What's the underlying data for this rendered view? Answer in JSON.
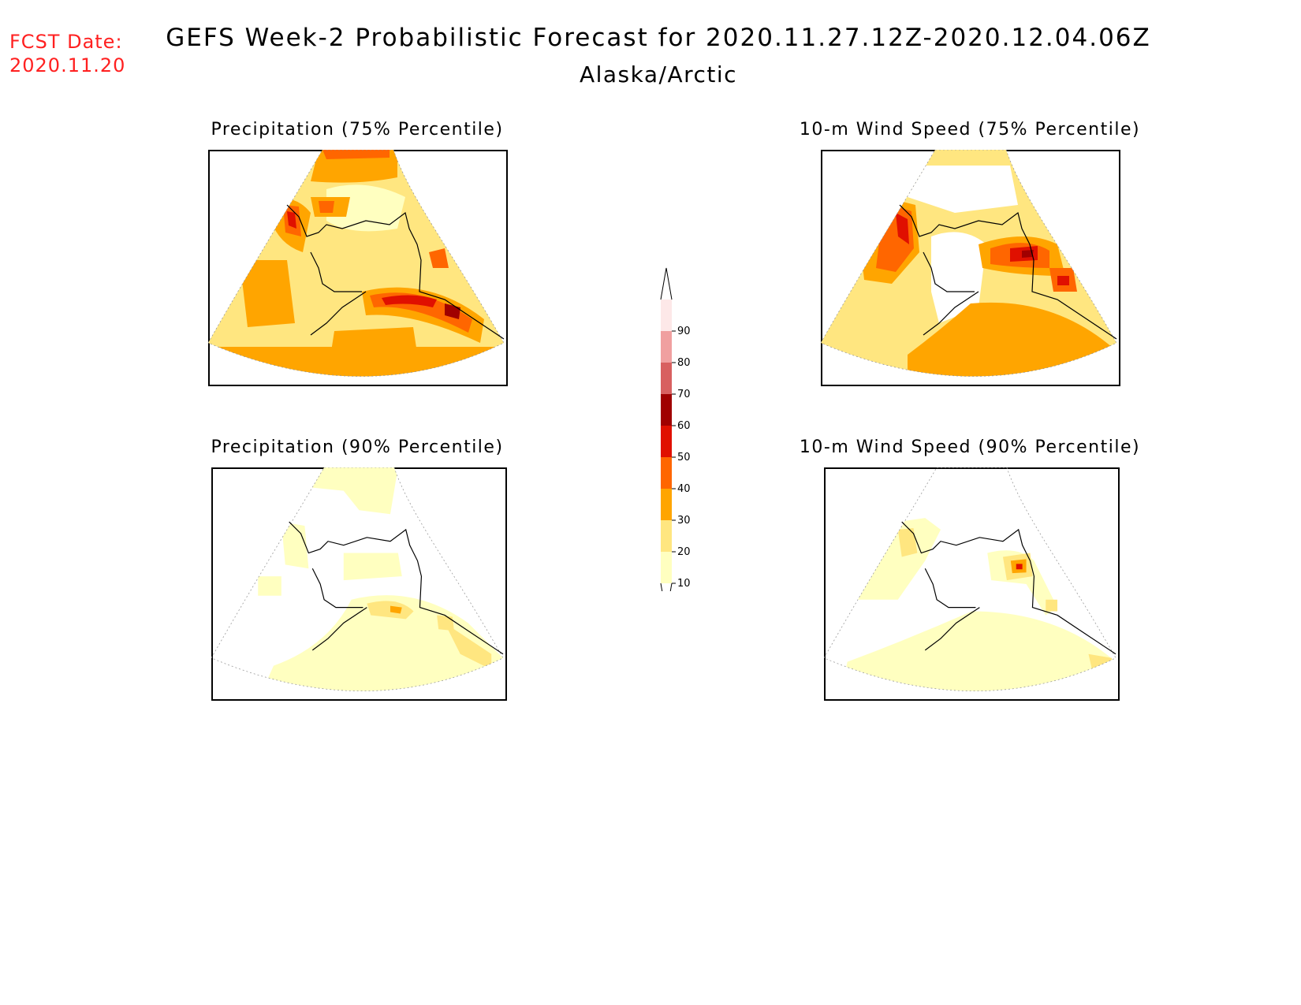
{
  "fcst_date": {
    "label": "FCST Date:",
    "value": "2020.11.20"
  },
  "title": "GEFS Week-2 Probabilistic Forecast for 2020.11.27.12Z-2020.12.04.06Z",
  "region": "Alaska/Arctic",
  "panels": [
    {
      "title": "Precipitation (75% Percentile)"
    },
    {
      "title": "10-m Wind Speed (75% Percentile)"
    },
    {
      "title": "Precipitation (90% Percentile)"
    },
    {
      "title": "10-m Wind Speed (90% Percentile)"
    }
  ],
  "colorbar": {
    "levels": [
      "10",
      "20",
      "30",
      "40",
      "50",
      "60",
      "70",
      "80",
      "90"
    ],
    "colors": [
      "#ffffc0",
      "#ffe680",
      "#ffa500",
      "#ff6600",
      "#e01000",
      "#a00000",
      "#d86060",
      "#f0a0a0",
      "#fde8e8"
    ]
  }
}
